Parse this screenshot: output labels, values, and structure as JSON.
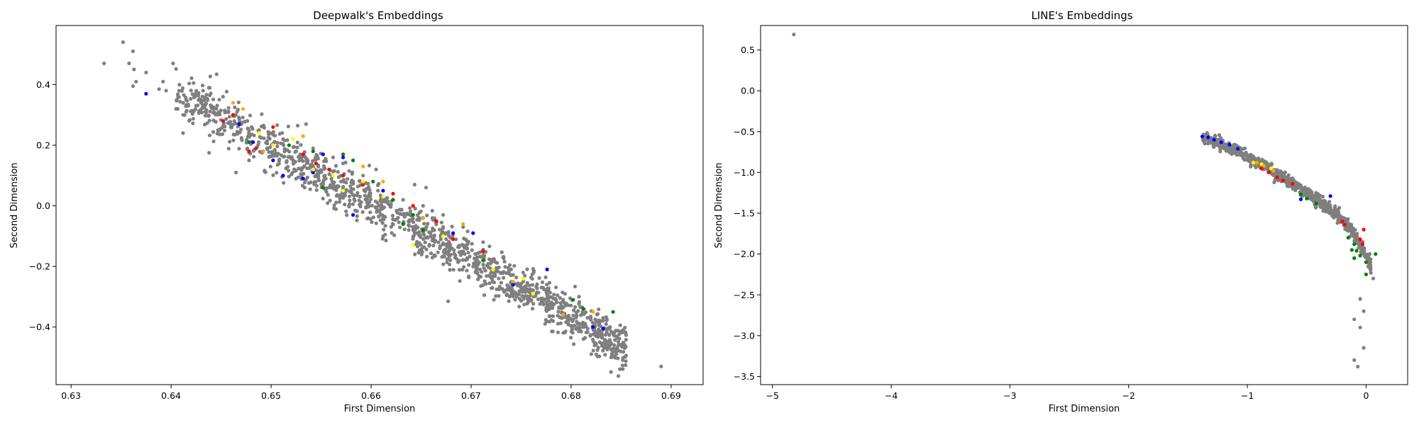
{
  "chart_data": [
    {
      "type": "scatter",
      "title": "Deepwalk's Embeddings",
      "xlabel": "First Dimension",
      "ylabel": "Second Dimension",
      "xlim": [
        0.6285,
        0.6932
      ],
      "ylim": [
        -0.59,
        0.595
      ],
      "xticks": [
        "0.63",
        "0.64",
        "0.65",
        "0.66",
        "0.67",
        "0.68",
        "0.69"
      ],
      "xtick_values": [
        0.63,
        0.64,
        0.65,
        0.66,
        0.67,
        0.68,
        0.69
      ],
      "yticks": [
        "−0.4",
        "−0.2",
        "0.0",
        "0.2",
        "0.4"
      ],
      "ytick_values": [
        -0.4,
        -0.2,
        0.0,
        0.2,
        0.4
      ],
      "grid": false,
      "colors": {
        "gray": "#7f7f7f",
        "red": "#ff0000",
        "blue": "#0000ff",
        "green": "#008000",
        "yellow": "#ffff00",
        "orange": "#ffa500"
      },
      "series": [
        {
          "color": "gray",
          "points": [
            [
              0.6333,
              0.47
            ],
            [
              0.6352,
              0.54
            ],
            [
              0.6362,
              0.51
            ],
            [
              0.6358,
              0.47
            ],
            [
              0.6363,
              0.45
            ],
            [
              0.6375,
              0.44
            ],
            [
              0.6365,
              0.41
            ],
            [
              0.6362,
              0.395
            ],
            [
              0.6392,
              0.41
            ],
            [
              0.6402,
              0.47
            ],
            [
              0.6388,
              0.385
            ],
            [
              0.6395,
              0.38
            ],
            [
              0.6405,
              0.32
            ],
            [
              0.6415,
              0.35
            ],
            [
              0.6412,
              0.3
            ],
            [
              0.6425,
              0.33
            ],
            [
              0.6432,
              0.38
            ],
            [
              0.6442,
              0.32
            ],
            [
              0.6452,
              0.36
            ],
            [
              0.6462,
              0.3
            ],
            [
              0.6412,
              0.24
            ],
            [
              0.6438,
              0.175
            ],
            [
              0.6478,
              0.15
            ],
            [
              0.6488,
              0.25
            ],
            [
              0.6512,
              0.22
            ],
            [
              0.6542,
              0.19
            ],
            [
              0.6562,
              0.16
            ],
            [
              0.6572,
              0.14
            ],
            [
              0.6592,
              0.1
            ],
            [
              0.6612,
              0.05
            ],
            [
              0.6632,
              0.02
            ],
            [
              0.6652,
              0.0
            ],
            [
              0.6672,
              -0.03
            ],
            [
              0.6692,
              -0.07
            ],
            [
              0.6712,
              -0.12
            ],
            [
              0.6732,
              -0.17
            ],
            [
              0.6752,
              -0.22
            ],
            [
              0.6772,
              -0.27
            ],
            [
              0.6792,
              -0.31
            ],
            [
              0.6812,
              -0.34
            ],
            [
              0.6832,
              -0.37
            ],
            [
              0.6842,
              -0.42
            ],
            [
              0.6852,
              -0.41
            ],
            [
              0.684,
              -0.5
            ],
            [
              0.689,
              -0.53
            ],
            [
              0.6677,
              -0.315
            ],
            [
              0.6655,
              0.06
            ],
            [
              0.6605,
              0.12
            ],
            [
              0.6535,
              0.27
            ],
            [
              0.6465,
              0.11
            ]
          ]
        },
        {
          "color": "red",
          "points": [
            [
              0.6452,
              0.28
            ],
            [
              0.6462,
              0.3
            ],
            [
              0.6478,
              0.18
            ],
            [
              0.6485,
              0.19
            ],
            [
              0.6502,
              0.26
            ],
            [
              0.6532,
              0.17
            ],
            [
              0.6545,
              0.14
            ],
            [
              0.6558,
              0.12
            ],
            [
              0.6572,
              0.1
            ],
            [
              0.6592,
              0.07
            ],
            [
              0.6622,
              0.04
            ],
            [
              0.6642,
              0.0
            ],
            [
              0.6665,
              -0.05
            ],
            [
              0.6682,
              -0.11
            ],
            [
              0.6712,
              -0.15
            ]
          ]
        },
        {
          "color": "blue",
          "points": [
            [
              0.6375,
              0.37
            ],
            [
              0.6468,
              0.27
            ],
            [
              0.6482,
              0.21
            ],
            [
              0.6492,
              0.18
            ],
            [
              0.6502,
              0.15
            ],
            [
              0.6512,
              0.1
            ],
            [
              0.6532,
              0.09
            ],
            [
              0.6542,
              0.11
            ],
            [
              0.6552,
              0.17
            ],
            [
              0.6572,
              0.16
            ],
            [
              0.6582,
              -0.03
            ],
            [
              0.6612,
              0.05
            ],
            [
              0.6632,
              -0.06
            ],
            [
              0.6652,
              -0.04
            ],
            [
              0.6682,
              -0.09
            ],
            [
              0.6702,
              -0.09
            ],
            [
              0.6742,
              -0.26
            ],
            [
              0.6776,
              -0.21
            ],
            [
              0.6822,
              -0.4
            ],
            [
              0.6832,
              -0.405
            ]
          ]
        },
        {
          "color": "green",
          "points": [
            [
              0.6478,
              0.21
            ],
            [
              0.6518,
              0.2
            ],
            [
              0.6542,
              0.18
            ],
            [
              0.6552,
              0.06
            ],
            [
              0.6572,
              0.17
            ],
            [
              0.6582,
              0.15
            ],
            [
              0.6602,
              0.08
            ],
            [
              0.6622,
              0.02
            ],
            [
              0.6632,
              -0.06
            ],
            [
              0.6642,
              -0.03
            ],
            [
              0.6652,
              -0.08
            ],
            [
              0.6712,
              -0.18
            ],
            [
              0.6802,
              -0.31
            ],
            [
              0.6812,
              -0.34
            ],
            [
              0.6842,
              -0.35
            ]
          ]
        },
        {
          "color": "yellow",
          "points": [
            [
              0.6488,
              0.24
            ],
            [
              0.6502,
              0.2
            ],
            [
              0.6522,
              0.22
            ],
            [
              0.6542,
              0.12
            ],
            [
              0.6562,
              0.1
            ],
            [
              0.6572,
              0.05
            ],
            [
              0.6592,
              0.08
            ],
            [
              0.6612,
              0.03
            ],
            [
              0.6642,
              -0.13
            ],
            [
              0.6672,
              -0.1
            ],
            [
              0.6722,
              -0.21
            ],
            [
              0.6752,
              -0.24
            ],
            [
              0.6762,
              -0.29
            ]
          ]
        },
        {
          "color": "orange",
          "points": [
            [
              0.6462,
              0.34
            ],
            [
              0.6472,
              0.32
            ],
            [
              0.6492,
              0.18
            ],
            [
              0.6532,
              0.23
            ],
            [
              0.6592,
              0.13
            ],
            [
              0.6612,
              0.08
            ],
            [
              0.6652,
              -0.04
            ],
            [
              0.6692,
              -0.06
            ],
            [
              0.6742,
              -0.25
            ],
            [
              0.6792,
              -0.36
            ],
            [
              0.6822,
              -0.35
            ]
          ]
        }
      ],
      "clouds": [
        {
          "color": "gray",
          "seed": 11,
          "count": 1350,
          "x_min": 0.6405,
          "x_max": 0.6855,
          "a": 0.0,
          "b": 0.0,
          "slope": -18.75,
          "center_x": 0.6605,
          "center_y": 0.0,
          "spread": 0.038
        }
      ]
    },
    {
      "type": "scatter",
      "title": "LINE's Embeddings",
      "xlabel": "First Dimension",
      "ylabel": "Second Dimension",
      "xlim": [
        -5.1,
        0.35
      ],
      "ylim": [
        -3.6,
        0.8
      ],
      "xticks": [
        "−5",
        "−4",
        "−3",
        "−2",
        "−1",
        "0"
      ],
      "xtick_values": [
        -5,
        -4,
        -3,
        -2,
        -1,
        0
      ],
      "yticks": [
        "−3.5",
        "−3.0",
        "−2.5",
        "−2.0",
        "−1.5",
        "−1.0",
        "−0.5",
        "0.0",
        "0.5"
      ],
      "ytick_values": [
        -3.5,
        -3.0,
        -2.5,
        -2.0,
        -1.5,
        -1.0,
        -0.5,
        0.0,
        0.5
      ],
      "grid": false,
      "colors": {
        "gray": "#7f7f7f",
        "red": "#ff0000",
        "blue": "#0000ff",
        "green": "#008000",
        "yellow": "#ffff00",
        "orange": "#ffa500"
      },
      "series": [
        {
          "color": "gray",
          "points": [
            [
              -4.82,
              0.69
            ],
            [
              -0.05,
              -2.9
            ],
            [
              -0.02,
              -3.15
            ],
            [
              -0.07,
              -3.38
            ],
            [
              -0.1,
              -3.3
            ],
            [
              0.04,
              -2.23
            ],
            [
              0.06,
              -2.3
            ],
            [
              -0.02,
              -2.7
            ],
            [
              -0.05,
              -2.55
            ],
            [
              0.03,
              -2.0
            ],
            [
              -0.1,
              -2.8
            ]
          ]
        },
        {
          "color": "blue",
          "points": [
            [
              -1.38,
              -0.56
            ],
            [
              -1.33,
              -0.57
            ],
            [
              -1.28,
              -0.6
            ],
            [
              -1.22,
              -0.63
            ],
            [
              -1.15,
              -0.66
            ],
            [
              -1.08,
              -0.71
            ],
            [
              -0.3,
              -1.29
            ],
            [
              -0.55,
              -1.33
            ]
          ]
        },
        {
          "color": "red",
          "points": [
            [
              -0.88,
              -0.95
            ],
            [
              -0.82,
              -1.0
            ],
            [
              -0.75,
              -1.06
            ],
            [
              -0.7,
              -1.1
            ],
            [
              -0.62,
              -1.14
            ],
            [
              -0.2,
              -1.6
            ],
            [
              -0.18,
              -1.64
            ],
            [
              -0.05,
              -1.82
            ],
            [
              -0.03,
              -1.88
            ],
            [
              -0.02,
              -1.7
            ]
          ]
        },
        {
          "color": "green",
          "points": [
            [
              -0.55,
              -1.27
            ],
            [
              -0.5,
              -1.32
            ],
            [
              -0.42,
              -1.38
            ],
            [
              -0.15,
              -1.8
            ],
            [
              -0.12,
              -1.95
            ],
            [
              -0.1,
              -2.05
            ],
            [
              -0.05,
              -2.02
            ],
            [
              0.0,
              -2.1
            ],
            [
              0.08,
              -2.0
            ],
            [
              -0.08,
              -1.96
            ],
            [
              0.0,
              -2.25
            ],
            [
              -0.1,
              -1.88
            ]
          ]
        },
        {
          "color": "yellow",
          "points": [
            [
              -0.95,
              -0.88
            ],
            [
              -0.88,
              -0.9
            ],
            [
              -0.8,
              -0.95
            ]
          ]
        },
        {
          "color": "orange",
          "points": [
            [
              -0.92,
              -0.88
            ],
            [
              -0.86,
              -0.92
            ],
            [
              -0.78,
              -0.98
            ]
          ]
        }
      ],
      "clouds": [
        {
          "color": "gray",
          "seed": 23,
          "count": 900,
          "x_min": -1.38,
          "x_max": 0.04,
          "a": -2.03,
          "b": -0.78,
          "slope": 0.0,
          "center_x": 0.0,
          "center_y": 0.0,
          "spread": 0.035
        }
      ]
    }
  ]
}
